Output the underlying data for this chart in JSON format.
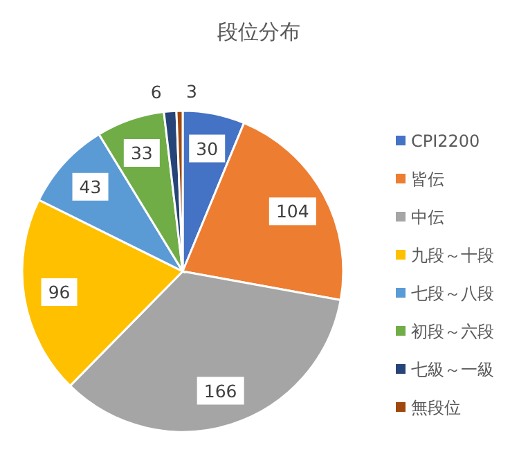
{
  "chart_data": {
    "type": "pie",
    "title": "段位分布",
    "categories": [
      "CPI2200",
      "皆伝",
      "中伝",
      "九段～十段",
      "七段～八段",
      "初段～六段",
      "七級～一級",
      "無段位"
    ],
    "values": [
      30,
      104,
      166,
      96,
      43,
      33,
      6,
      3
    ],
    "colors": [
      "#4472c4",
      "#ed7d31",
      "#a5a5a5",
      "#ffc000",
      "#5b9bd5",
      "#70ad47",
      "#264478",
      "#9e480e"
    ],
    "data_labels": true,
    "legend": "right"
  }
}
